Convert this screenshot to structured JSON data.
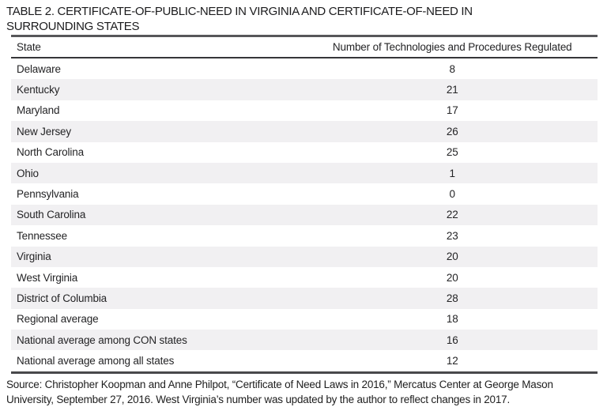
{
  "title": "TABLE 2. CERTIFICATE-OF-PUBLIC-NEED IN VIRGINIA AND CERTIFICATE-OF-NEED IN SURROUNDING STATES",
  "table": {
    "columns": [
      "State",
      "Number of Technologies and Procedures Regulated"
    ],
    "rows": [
      [
        "Delaware",
        "8"
      ],
      [
        "Kentucky",
        "21"
      ],
      [
        "Maryland",
        "17"
      ],
      [
        "New Jersey",
        "26"
      ],
      [
        "North Carolina",
        "25"
      ],
      [
        "Ohio",
        "1"
      ],
      [
        "Pennsylvania",
        "0"
      ],
      [
        "South Carolina",
        "22"
      ],
      [
        "Tennessee",
        "23"
      ],
      [
        "Virginia",
        "20"
      ],
      [
        "West Virginia",
        "20"
      ],
      [
        "District of Columbia",
        "28"
      ],
      [
        "Regional average",
        "18"
      ],
      [
        "National average among CON states",
        "16"
      ],
      [
        "National average among all states",
        "12"
      ]
    ]
  },
  "source_note": "Source: Christopher Koopman and Anne Philpot, “Certificate of Need Laws in 2016,” Mercatus Center at George Mason University, September 27, 2016. West Virginia’s number was updated by the author to reflect changes in 2017.",
  "colors": {
    "row_stripe": "#f1f0f2",
    "title_rule": "#57575a",
    "header_rule": "#363639",
    "bottom_rule": "#48484b",
    "text": "#1e1e1e"
  }
}
